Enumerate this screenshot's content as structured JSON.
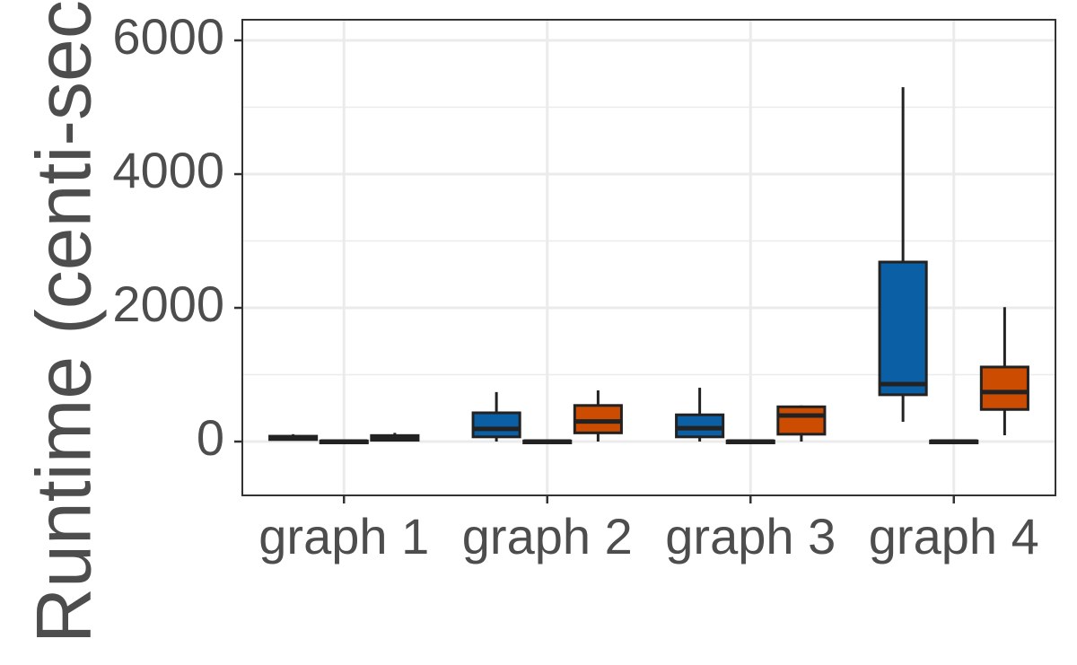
{
  "chart_data": {
    "type": "boxplot",
    "y_label": "Runtime (centi-seconds)",
    "categories": [
      "graph 1",
      "graph 2",
      "graph 3",
      "graph 4"
    ],
    "ylim": [
      -805,
      6309
    ],
    "yticks": [
      0,
      2000,
      4000,
      6000
    ],
    "y_minor_grid": [
      1000,
      3000,
      5000
    ],
    "grid": true,
    "series": [
      {
        "color": "#0b5fa5",
        "low": [
          20,
          0,
          0,
          295
        ],
        "q1": [
          30,
          70,
          70,
          700
        ],
        "median": [
          50,
          190,
          200,
          860
        ],
        "q3": [
          80,
          430,
          400,
          2685
        ],
        "high": [
          110,
          740,
          805,
          5300
        ]
      },
      {
        "color": "#7f7f7f",
        "low": [
          -20,
          -20,
          -20,
          -20
        ],
        "q1": [
          -20,
          -20,
          -20,
          -20
        ],
        "median": [
          0,
          0,
          0,
          0
        ],
        "q3": [
          10,
          10,
          10,
          10
        ],
        "high": [
          20,
          20,
          20,
          20
        ]
      },
      {
        "color": "#cc4c02",
        "low": [
          10,
          0,
          0,
          95
        ],
        "q1": [
          20,
          130,
          110,
          480
        ],
        "median": [
          40,
          300,
          390,
          740
        ],
        "q3": [
          90,
          540,
          520,
          1115
        ],
        "high": [
          130,
          765,
          540,
          2010
        ]
      }
    ]
  }
}
